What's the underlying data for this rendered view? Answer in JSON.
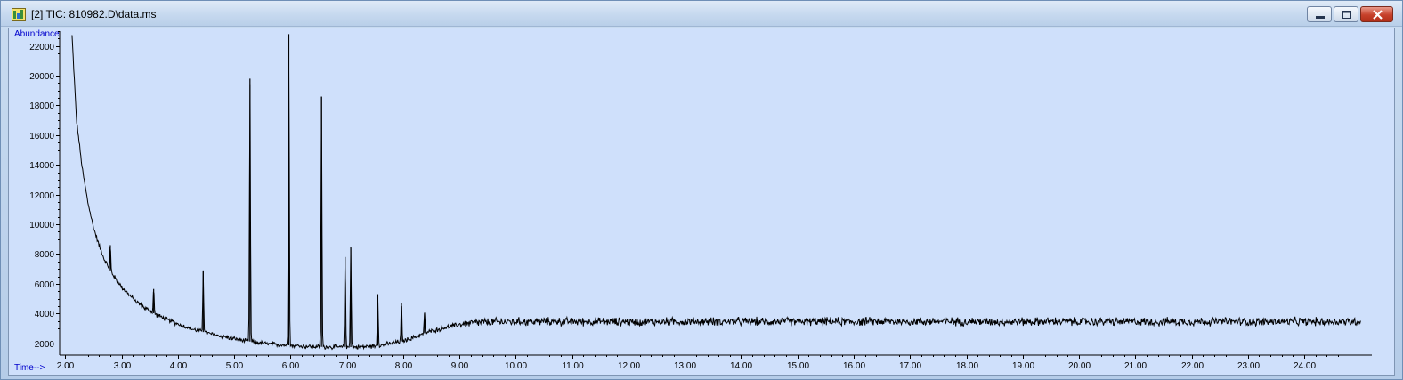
{
  "window": {
    "title": "[2] TIC: 810982.D\\data.ms",
    "icon": "chromatogram-app-icon",
    "controls": [
      "minimize-icon",
      "restore-icon",
      "close-icon"
    ],
    "close_color": "#c7412b"
  },
  "chart_data": {
    "type": "line",
    "title": "",
    "xlabel": "Time-->",
    "ylabel": "Abundance",
    "xlim": [
      1.9,
      25.2
    ],
    "ylim": [
      1200,
      23000
    ],
    "x_ticks": [
      "2.00",
      "3.00",
      "4.00",
      "5.00",
      "6.00",
      "7.00",
      "8.00",
      "9.00",
      "10.00",
      "11.00",
      "12.00",
      "13.00",
      "14.00",
      "15.00",
      "16.00",
      "17.00",
      "18.00",
      "19.00",
      "20.00",
      "21.00",
      "22.00",
      "23.00",
      "24.00"
    ],
    "y_ticks": [
      "2000",
      "4000",
      "6000",
      "8000",
      "10000",
      "12000",
      "14000",
      "16000",
      "18000",
      "20000",
      "22000"
    ],
    "grid": false,
    "background": "#cfe0fb",
    "line_color": "#000000",
    "axis_label_color": "#0000cc",
    "series": [
      {
        "x": [
          2.12,
          2.2,
          2.3,
          2.4,
          2.5,
          2.6,
          2.7,
          2.8,
          2.9,
          3.0,
          3.2,
          3.4,
          3.6,
          3.8,
          4.0,
          4.2,
          4.4,
          4.6,
          4.8,
          5.0,
          5.2,
          5.4,
          5.6,
          5.8,
          6.0,
          6.2,
          6.4,
          6.6,
          6.8,
          7.0,
          7.2,
          7.4,
          7.6,
          7.8,
          8.0,
          8.2,
          8.4,
          8.6,
          8.8,
          9.0,
          9.2,
          9.4,
          9.6,
          10.0,
          11.0,
          12.0,
          13.0,
          14.0,
          15.0,
          16.0,
          17.0,
          18.0,
          19.0,
          20.0,
          21.0,
          22.0,
          23.0,
          24.0,
          25.0
        ],
        "y": [
          22700,
          17000,
          13800,
          11500,
          9800,
          8600,
          7600,
          6900,
          6300,
          5800,
          5000,
          4400,
          3950,
          3600,
          3300,
          3000,
          2800,
          2600,
          2450,
          2300,
          2150,
          2050,
          1950,
          1900,
          1850,
          1800,
          1780,
          1750,
          1740,
          1730,
          1750,
          1780,
          1850,
          2000,
          2150,
          2400,
          2700,
          2900,
          3100,
          3250,
          3350,
          3400,
          3420,
          3450,
          3450,
          3440,
          3450,
          3460,
          3450,
          3450,
          3460,
          3450,
          3450,
          3450,
          3440,
          3450,
          3450,
          3450,
          3450
        ],
        "noise": 350
      }
    ],
    "peaks": [
      {
        "x": 2.8,
        "y": 8600
      },
      {
        "x": 3.57,
        "y": 5650
      },
      {
        "x": 4.45,
        "y": 6900
      },
      {
        "x": 5.28,
        "y": 19800
      },
      {
        "x": 5.97,
        "y": 22800
      },
      {
        "x": 6.55,
        "y": 18600
      },
      {
        "x": 6.97,
        "y": 7800
      },
      {
        "x": 7.07,
        "y": 8500
      },
      {
        "x": 7.55,
        "y": 5300
      },
      {
        "x": 7.97,
        "y": 4700
      },
      {
        "x": 8.38,
        "y": 4000
      }
    ]
  }
}
